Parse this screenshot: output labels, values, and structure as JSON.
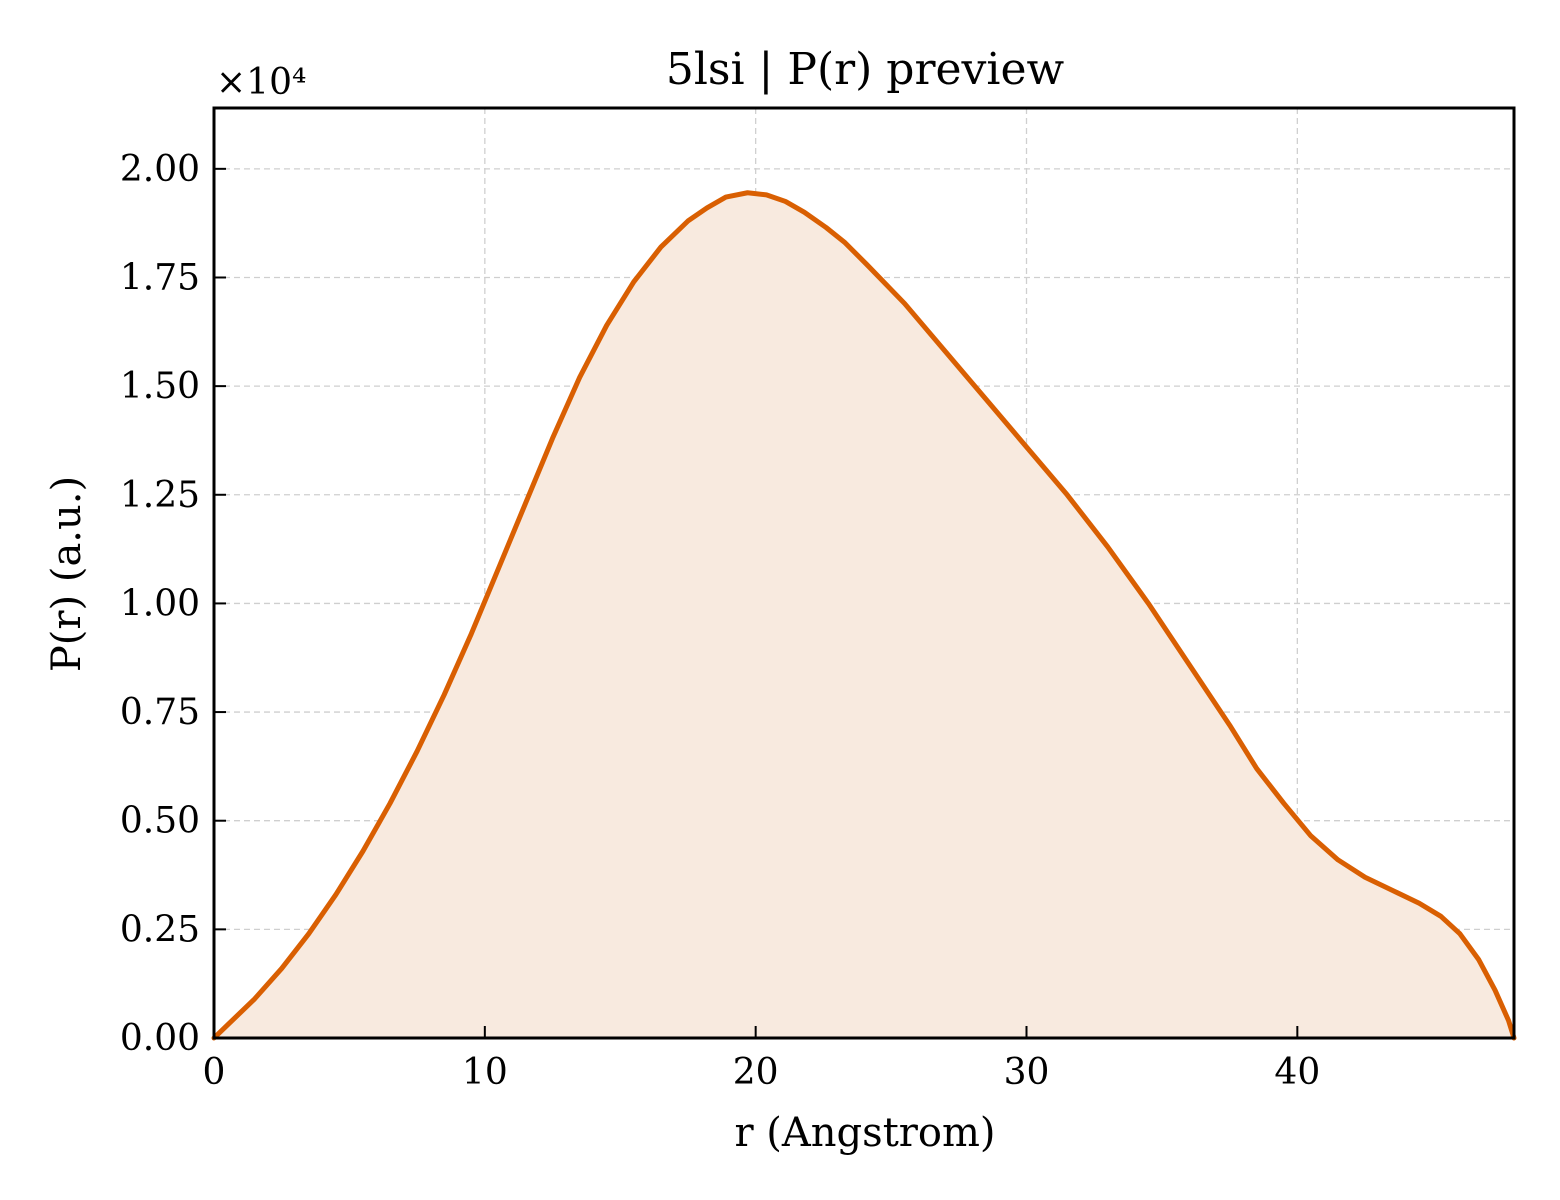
{
  "chart_data": {
    "type": "area",
    "title": "5lsi | P(r) preview",
    "xlabel": "r (Angstrom)",
    "ylabel": "P(r) (a.u.)",
    "y_offset_text": "×10⁴",
    "xlim": [
      0,
      48
    ],
    "ylim": [
      0,
      2.14
    ],
    "y_scale_factor": 10000,
    "x_ticks": [
      0,
      10,
      20,
      30,
      40
    ],
    "x_tick_labels": [
      "0",
      "10",
      "20",
      "30",
      "40"
    ],
    "y_ticks": [
      0,
      0.25,
      0.5,
      0.75,
      1.0,
      1.25,
      1.5,
      1.75,
      2.0
    ],
    "y_tick_labels": [
      "0.00",
      "0.25",
      "0.50",
      "0.75",
      "1.00",
      "1.25",
      "1.50",
      "1.75",
      "2.00"
    ],
    "grid": true,
    "colors": {
      "line": "#d95f02",
      "fill": "#f8eadf"
    },
    "series": [
      {
        "x": [
          0,
          0.5,
          1.5,
          2.5,
          3.5,
          4.5,
          5.5,
          6.5,
          7.5,
          8.5,
          9.5,
          10.5,
          11.5,
          12.5,
          13.5,
          14.5,
          15.5,
          16.5,
          17.5,
          18.2,
          18.9,
          19.7,
          20.4,
          21.1,
          21.8,
          22.6,
          23.3,
          24.1,
          25.5,
          27,
          28.5,
          30,
          31.5,
          33,
          34.5,
          36,
          37.5,
          38.5,
          39.5,
          40.5,
          41.5,
          42.5,
          43.5,
          44.5,
          45.3,
          46,
          46.7,
          47.3,
          47.8,
          48
        ],
        "values": [
          0.0,
          0.03,
          0.09,
          0.16,
          0.24,
          0.33,
          0.43,
          0.54,
          0.66,
          0.79,
          0.93,
          1.08,
          1.23,
          1.38,
          1.52,
          1.64,
          1.74,
          1.82,
          1.88,
          1.91,
          1.935,
          1.945,
          1.94,
          1.925,
          1.9,
          1.865,
          1.83,
          1.78,
          1.69,
          1.58,
          1.47,
          1.36,
          1.25,
          1.13,
          1.0,
          0.86,
          0.72,
          0.62,
          0.54,
          0.465,
          0.41,
          0.37,
          0.34,
          0.31,
          0.28,
          0.24,
          0.18,
          0.11,
          0.04,
          0.0
        ]
      }
    ]
  }
}
